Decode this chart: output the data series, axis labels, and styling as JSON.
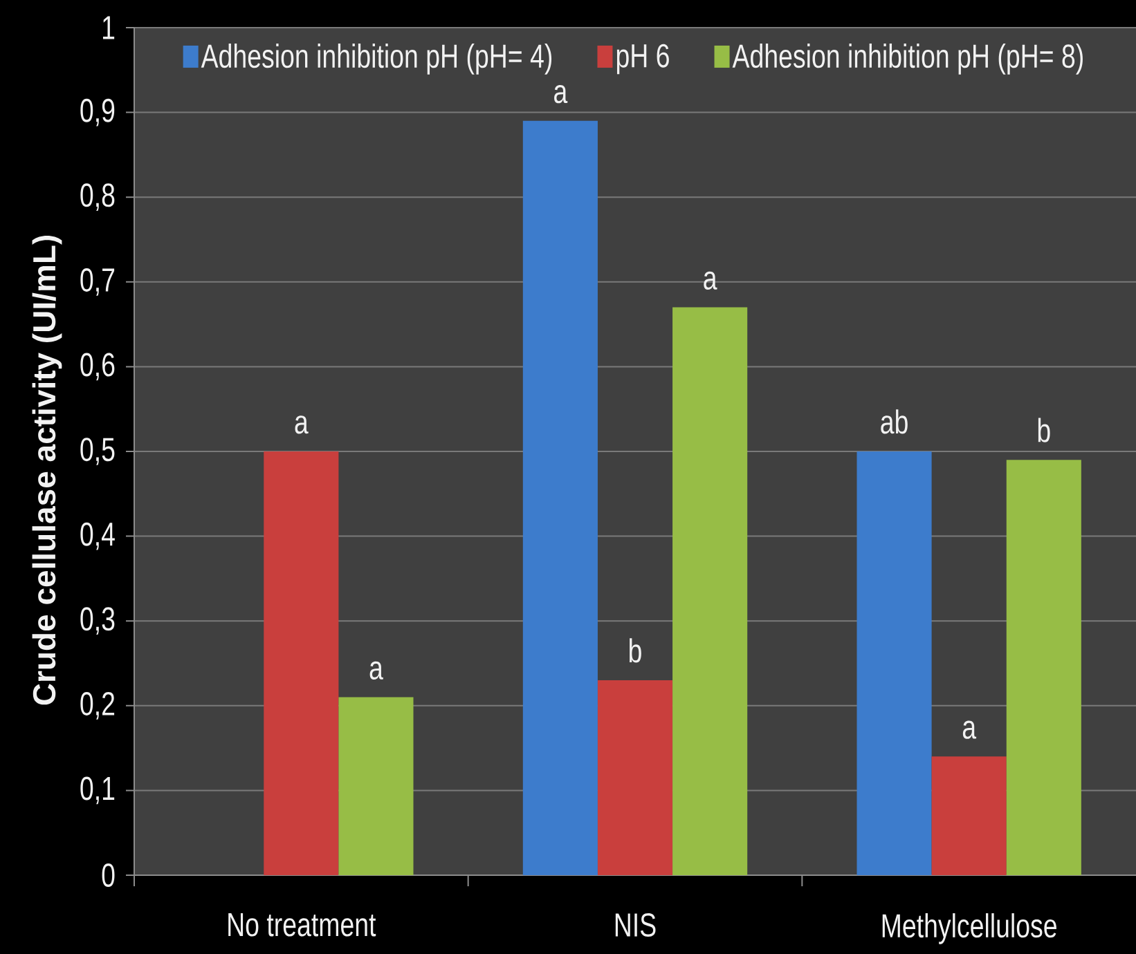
{
  "chart_data": {
    "type": "bar",
    "ylabel": "Crude cellulase activity (UI/mL)",
    "categories": [
      "No treatment",
      "NIS",
      "Methylcellulose"
    ],
    "series": [
      {
        "name": "Adhesion inhibition pH (pH= 4)",
        "color": "#3d7ccc",
        "values": [
          null,
          0.89,
          0.5
        ],
        "value_labels": [
          null,
          "a",
          "ab"
        ]
      },
      {
        "name": "pH 6",
        "color": "#c93f3d",
        "values": [
          0.5,
          0.23,
          0.14
        ],
        "value_labels": [
          "a",
          "b",
          "a"
        ]
      },
      {
        "name": "Adhesion inhibition pH (pH= 8)",
        "color": "#97bd46",
        "values": [
          0.21,
          0.67,
          0.49
        ],
        "value_labels": [
          "a",
          "a",
          "b"
        ]
      }
    ],
    "ylim": [
      0,
      1
    ],
    "yticks": [
      0,
      {
        "value": 0.1,
        "label": "0,1"
      },
      {
        "value": 0.2,
        "label": "0,2"
      },
      {
        "value": 0.3,
        "label": "0,3"
      },
      {
        "value": 0.4,
        "label": "0,4"
      },
      {
        "value": 0.5,
        "label": "0,5"
      },
      {
        "value": 0.6,
        "label": "0,6"
      },
      {
        "value": 0.7,
        "label": "0,7"
      },
      {
        "value": 0.8,
        "label": "0,8"
      },
      {
        "value": 0.9,
        "label": "0,9"
      },
      1
    ],
    "grid": "y",
    "legend": "top"
  }
}
